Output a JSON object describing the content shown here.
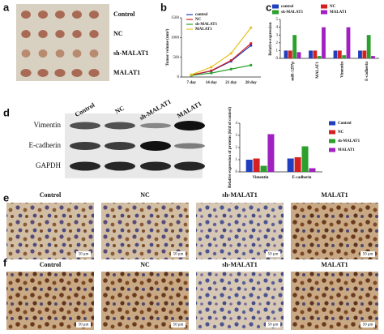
{
  "panel_labels": [
    "a",
    "b",
    "c",
    "d",
    "e",
    "f"
  ],
  "tumor_rows": [
    "Control",
    "NC",
    "sh-MALAT1",
    "MALAT1"
  ],
  "blot": {
    "lanes": [
      "Control",
      "NC",
      "sh-MALAT1",
      "MALAT1"
    ],
    "proteins": [
      "Vimentin",
      "E-cadherin",
      "GAPDH"
    ]
  },
  "ihc_e": {
    "columns": [
      "Control",
      "NC",
      "sh-MALAT1",
      "MALAT1"
    ],
    "scale": "50 μm"
  },
  "ihc_f": {
    "columns": [
      "Control",
      "NC",
      "sh-MALAT1",
      "MALAT1"
    ],
    "scale": "50 μm"
  },
  "chart_data": [
    {
      "type": "line",
      "ylabel": "Tumor volume (mm³)",
      "categories": [
        "7 day",
        "14 day",
        "21 day",
        "28 day"
      ],
      "ylim": [
        0,
        1500
      ],
      "yticks": [
        0,
        500,
        1000,
        1500
      ],
      "series": [
        {
          "name": "control",
          "color": "#1f3fbf",
          "values": [
            50,
            150,
            400,
            800
          ]
        },
        {
          "name": "NC",
          "color": "#d62020",
          "values": [
            50,
            160,
            420,
            850
          ]
        },
        {
          "name": "sh-MALAT1",
          "color": "#2ca02c",
          "values": [
            40,
            100,
            200,
            300
          ]
        },
        {
          "name": "MALAT1",
          "color": "#e8c020",
          "values": [
            60,
            250,
            600,
            1250
          ]
        }
      ]
    },
    {
      "type": "bar",
      "ylabel": "Relative expression",
      "categories": [
        "miR-1297p",
        "MALAT1",
        "Vimentin",
        "E-cadherin"
      ],
      "ylim": [
        0,
        5
      ],
      "yticks": [
        0,
        1,
        2,
        3,
        4,
        5
      ],
      "series": [
        {
          "name": "control",
          "color": "#1f3fbf",
          "values": [
            1,
            1,
            1,
            1
          ]
        },
        {
          "name": "NC",
          "color": "#d62020",
          "values": [
            1,
            1,
            1,
            1
          ]
        },
        {
          "name": "sh-MALAT1",
          "color": "#2ca02c",
          "values": [
            3,
            0.3,
            0.4,
            3
          ]
        },
        {
          "name": "MALAT1",
          "color": "#a020c0",
          "values": [
            0.8,
            4,
            4,
            0.3
          ]
        }
      ]
    },
    {
      "type": "bar",
      "ylabel": "Relative expression of proteins (fold of control)",
      "categories": [
        "Vimentin",
        "E-cadherin"
      ],
      "ylim": [
        0,
        4
      ],
      "yticks": [
        0,
        1,
        2,
        3,
        4
      ],
      "series": [
        {
          "name": "Control",
          "color": "#1f3fbf",
          "values": [
            1,
            1.1
          ]
        },
        {
          "name": "NC",
          "color": "#d62020",
          "values": [
            1.1,
            1.2
          ]
        },
        {
          "name": "sh-MALAT1",
          "color": "#2ca02c",
          "values": [
            0.5,
            2.1
          ]
        },
        {
          "name": "MALAT1",
          "color": "#a020c0",
          "values": [
            3.1,
            0.3
          ]
        }
      ]
    }
  ]
}
